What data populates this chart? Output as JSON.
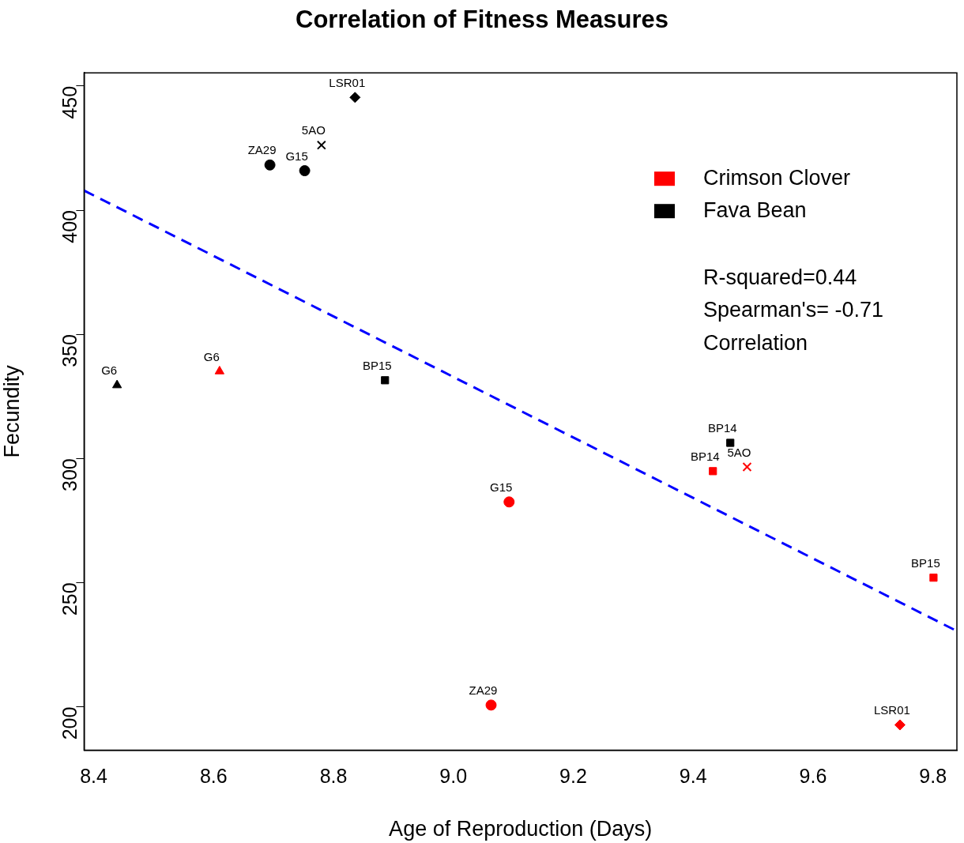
{
  "chart_data": {
    "type": "scatter",
    "title": "Correlation of Fitness Measures",
    "xlabel": "Age of Reproduction (Days)",
    "ylabel": "Fecundity",
    "xlim": [
      8.384,
      9.84
    ],
    "xticks": [
      8.4,
      8.6,
      8.8,
      {
        "value": 9,
        "label": "9.0"
      },
      9.2,
      9.4,
      9.6,
      9.8
    ],
    "ylim": [
      182.5,
      455.3
    ],
    "yticks": [
      200,
      250,
      300,
      350,
      400,
      450
    ],
    "grid": false,
    "legend": "top right",
    "series": [
      {
        "name": "Crimson Clover",
        "color": "#ff0000",
        "marker": "triangle",
        "x": [
          8.61
        ],
        "values": [
          335.1
        ]
      },
      {
        "color": "#ff0000",
        "marker": "square",
        "x": [
          9.433,
          9.801
        ],
        "values": [
          294.9,
          252.0
        ]
      },
      {
        "color": "#ff0000",
        "marker": "cross",
        "x": [
          9.49
        ],
        "values": [
          296.6
        ]
      },
      {
        "color": "#ff0000",
        "marker": "circle",
        "x": [
          9.093,
          9.063
        ],
        "values": [
          282.5,
          200.7
        ]
      },
      {
        "color": "#ff0000",
        "marker": "diamond",
        "x": [
          9.745
        ],
        "values": [
          192.7
        ]
      },
      {
        "name": "Fava Bean",
        "color": "#000000",
        "marker": "diamond",
        "x": [
          8.836
        ],
        "values": [
          445.4
        ]
      },
      {
        "color": "#000000",
        "marker": "cross",
        "x": [
          8.78
        ],
        "values": [
          426.2
        ]
      },
      {
        "color": "#000000",
        "marker": "circle",
        "x": [
          8.694,
          8.752
        ],
        "values": [
          418.2,
          415.9
        ]
      },
      {
        "color": "#000000",
        "marker": "triangle",
        "x": [
          8.439
        ],
        "values": [
          329.5
        ]
      },
      {
        "color": "#000000",
        "marker": "square",
        "x": [
          8.886,
          9.462
        ],
        "values": [
          331.5,
          306.3
        ]
      },
      {
        "type": "line",
        "color": "#0000ff",
        "marker": "none",
        "line_style": "dashed",
        "x": [
          8.384,
          9.84
        ],
        "values": [
          407.9,
          230.5
        ]
      }
    ],
    "annotations": [
      "R-squared=0.44",
      "Spearman's= -0.71",
      "Correlation",
      {
        "text": "G6",
        "x": 8.61,
        "y": 335.1
      },
      {
        "text": "BP14",
        "x": 9.433,
        "y": 294.9
      },
      {
        "text": "BP15",
        "x": 9.801,
        "y": 252.0
      },
      {
        "text": "5AO",
        "x": 9.49,
        "y": 296.6
      },
      {
        "text": "G15",
        "x": 9.093,
        "y": 282.5
      },
      {
        "text": "ZA29",
        "x": 9.063,
        "y": 200.7
      },
      {
        "text": "LSR01",
        "x": 9.745,
        "y": 192.7
      },
      {
        "text": "LSR01",
        "x": 8.836,
        "y": 445.4
      },
      {
        "text": "5AO",
        "x": 8.78,
        "y": 426.2
      },
      {
        "text": "ZA29",
        "x": 8.694,
        "y": 418.2
      },
      {
        "text": "G15",
        "x": 8.752,
        "y": 415.9
      },
      {
        "text": "G6",
        "x": 8.439,
        "y": 329.5
      },
      {
        "text": "BP15",
        "x": 8.886,
        "y": 331.5
      },
      {
        "text": "BP14",
        "x": 9.462,
        "y": 306.3
      }
    ]
  }
}
